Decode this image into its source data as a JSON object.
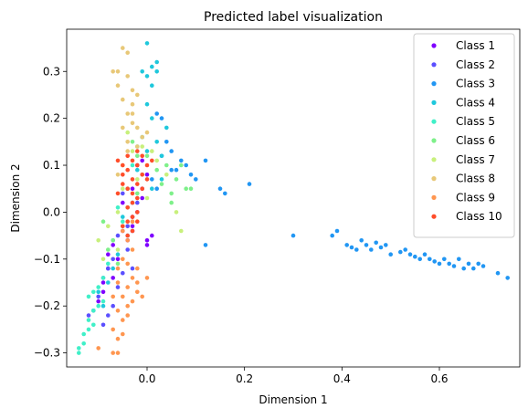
{
  "chart_data": {
    "type": "scatter",
    "title": "Predicted label visualization",
    "xlabel": "Dimension 1",
    "ylabel": "Dimension 2",
    "xlim": [
      -0.165,
      0.765
    ],
    "ylim": [
      -0.33,
      0.39
    ],
    "xticks": [
      0.0,
      0.2,
      0.4,
      0.6
    ],
    "xtick_labels": [
      "0.0",
      "0.2",
      "0.4",
      "0.6"
    ],
    "yticks": [
      -0.3,
      -0.2,
      -0.1,
      0.0,
      0.1,
      0.2,
      0.3
    ],
    "ytick_labels": [
      "−0.3",
      "−0.2",
      "−0.1",
      "0.0",
      "0.1",
      "0.2",
      "0.3"
    ],
    "grid": false,
    "legend_position": "top-right",
    "series": [
      {
        "name": "Class 1",
        "color": "#7f00ff",
        "points": [
          [
            -0.02,
            0.1
          ],
          [
            -0.01,
            0.11
          ],
          [
            0.0,
            0.08
          ],
          [
            -0.03,
            0.05
          ],
          [
            -0.01,
            0.03
          ],
          [
            -0.05,
            0.02
          ],
          [
            -0.03,
            -0.01
          ],
          [
            -0.05,
            -0.04
          ],
          [
            -0.04,
            -0.06
          ],
          [
            -0.07,
            -0.07
          ],
          [
            -0.08,
            -0.09
          ],
          [
            -0.06,
            -0.1
          ],
          [
            -0.08,
            -0.12
          ],
          [
            -0.07,
            -0.14
          ],
          [
            -0.09,
            -0.15
          ],
          [
            0.0,
            -0.06
          ],
          [
            0.01,
            -0.05
          ],
          [
            -0.01,
            0.05
          ],
          [
            0.0,
            -0.07
          ],
          [
            -0.02,
            0.0
          ],
          [
            -0.03,
            -0.03
          ],
          [
            -0.09,
            -0.17
          ],
          [
            -0.1,
            -0.19
          ]
        ]
      },
      {
        "name": "Class 2",
        "color": "#5b4fff",
        "points": [
          [
            -0.06,
            -0.05
          ],
          [
            -0.07,
            -0.1
          ],
          [
            -0.08,
            -0.12
          ],
          [
            -0.05,
            -0.13
          ],
          [
            -0.09,
            -0.14
          ],
          [
            -0.06,
            -0.16
          ],
          [
            -0.1,
            -0.18
          ],
          [
            -0.07,
            -0.2
          ],
          [
            -0.11,
            -0.21
          ],
          [
            -0.08,
            -0.22
          ],
          [
            -0.12,
            -0.22
          ],
          [
            -0.09,
            -0.24
          ],
          [
            -0.04,
            -0.08
          ],
          [
            -0.03,
            -0.04
          ],
          [
            -0.02,
            0.02
          ],
          [
            -0.05,
            0.04
          ],
          [
            -0.03,
            -0.12
          ],
          [
            -0.04,
            -0.03
          ]
        ]
      },
      {
        "name": "Class 3",
        "color": "#2196f3",
        "points": [
          [
            0.02,
            0.21
          ],
          [
            0.03,
            0.2
          ],
          [
            0.04,
            0.15
          ],
          [
            0.05,
            0.13
          ],
          [
            0.07,
            0.11
          ],
          [
            0.08,
            0.1
          ],
          [
            0.06,
            0.09
          ],
          [
            0.09,
            0.08
          ],
          [
            0.1,
            0.07
          ],
          [
            0.12,
            0.11
          ],
          [
            0.15,
            0.05
          ],
          [
            0.16,
            0.04
          ],
          [
            0.21,
            0.06
          ],
          [
            0.12,
            -0.07
          ],
          [
            0.3,
            -0.05
          ],
          [
            0.38,
            -0.05
          ],
          [
            0.39,
            -0.04
          ],
          [
            0.41,
            -0.07
          ],
          [
            0.42,
            -0.075
          ],
          [
            0.43,
            -0.08
          ],
          [
            0.44,
            -0.06
          ],
          [
            0.45,
            -0.07
          ],
          [
            0.46,
            -0.08
          ],
          [
            0.47,
            -0.065
          ],
          [
            0.48,
            -0.075
          ],
          [
            0.49,
            -0.07
          ],
          [
            0.5,
            -0.09
          ],
          [
            0.52,
            -0.085
          ],
          [
            0.53,
            -0.08
          ],
          [
            0.54,
            -0.09
          ],
          [
            0.55,
            -0.095
          ],
          [
            0.56,
            -0.1
          ],
          [
            0.57,
            -0.09
          ],
          [
            0.58,
            -0.1
          ],
          [
            0.59,
            -0.105
          ],
          [
            0.6,
            -0.11
          ],
          [
            0.61,
            -0.1
          ],
          [
            0.62,
            -0.11
          ],
          [
            0.63,
            -0.115
          ],
          [
            0.64,
            -0.1
          ],
          [
            0.65,
            -0.12
          ],
          [
            0.66,
            -0.11
          ],
          [
            0.67,
            -0.12
          ],
          [
            0.68,
            -0.11
          ],
          [
            0.69,
            -0.115
          ],
          [
            0.72,
            -0.13
          ],
          [
            0.74,
            -0.14
          ],
          [
            0.02,
            0.05
          ],
          [
            0.01,
            0.07
          ],
          [
            0.03,
            0.12
          ],
          [
            0.05,
            0.09
          ]
        ]
      },
      {
        "name": "Class 4",
        "color": "#1fc8dc",
        "points": [
          [
            0.0,
            0.36
          ],
          [
            0.01,
            0.31
          ],
          [
            0.02,
            0.32
          ],
          [
            -0.01,
            0.3
          ],
          [
            0.0,
            0.29
          ],
          [
            0.02,
            0.3
          ],
          [
            0.01,
            0.27
          ],
          [
            0.0,
            0.23
          ],
          [
            0.01,
            0.2
          ],
          [
            0.02,
            0.15
          ],
          [
            -0.01,
            0.16
          ],
          [
            0.0,
            0.13
          ],
          [
            0.03,
            0.12
          ],
          [
            -0.02,
            0.09
          ],
          [
            0.01,
            0.05
          ],
          [
            -0.03,
            0.02
          ],
          [
            -0.05,
            -0.01
          ],
          [
            -0.04,
            -0.05
          ],
          [
            -0.06,
            -0.09
          ],
          [
            -0.07,
            -0.12
          ],
          [
            -0.08,
            -0.15
          ],
          [
            -0.1,
            -0.17
          ],
          [
            -0.09,
            -0.2
          ],
          [
            0.04,
            0.18
          ],
          [
            0.03,
            0.07
          ]
        ]
      },
      {
        "name": "Class 5",
        "color": "#40f0c8",
        "points": [
          [
            -0.14,
            -0.29
          ],
          [
            -0.13,
            -0.28
          ],
          [
            -0.14,
            -0.3
          ],
          [
            -0.13,
            -0.26
          ],
          [
            -0.12,
            -0.25
          ],
          [
            -0.11,
            -0.24
          ],
          [
            -0.12,
            -0.23
          ],
          [
            -0.11,
            -0.21
          ],
          [
            -0.1,
            -0.2
          ],
          [
            -0.12,
            -0.18
          ],
          [
            -0.1,
            -0.16
          ],
          [
            -0.09,
            -0.14
          ],
          [
            -0.08,
            -0.11
          ],
          [
            -0.07,
            -0.06
          ],
          [
            -0.05,
            -0.02
          ],
          [
            -0.06,
            0.01
          ],
          [
            -0.04,
            0.05
          ],
          [
            -0.03,
            0.1
          ],
          [
            -0.02,
            0.14
          ],
          [
            -0.01,
            0.16
          ],
          [
            -0.11,
            -0.17
          ],
          [
            -0.09,
            -0.19
          ]
        ]
      },
      {
        "name": "Class 6",
        "color": "#7ef08a",
        "points": [
          [
            -0.03,
            0.15
          ],
          [
            -0.02,
            0.12
          ],
          [
            0.0,
            0.12
          ],
          [
            0.02,
            0.09
          ],
          [
            0.03,
            0.06
          ],
          [
            0.05,
            0.04
          ],
          [
            0.06,
            0.07
          ],
          [
            0.08,
            0.05
          ],
          [
            0.09,
            0.05
          ],
          [
            0.04,
            0.1
          ],
          [
            -0.01,
            0.08
          ],
          [
            -0.02,
            0.04
          ],
          [
            -0.04,
            0.01
          ],
          [
            -0.05,
            -0.03
          ],
          [
            -0.07,
            -0.06
          ],
          [
            -0.08,
            -0.08
          ],
          [
            -0.09,
            -0.02
          ],
          [
            -0.06,
            -0.11
          ],
          [
            0.07,
            0.1
          ],
          [
            0.05,
            0.02
          ]
        ]
      },
      {
        "name": "Class 7",
        "color": "#c8f07c",
        "points": [
          [
            -0.04,
            0.17
          ],
          [
            -0.03,
            0.13
          ],
          [
            -0.01,
            0.14
          ],
          [
            0.01,
            0.13
          ],
          [
            0.02,
            0.11
          ],
          [
            0.04,
            0.08
          ],
          [
            -0.02,
            0.07
          ],
          [
            -0.05,
            0.05
          ],
          [
            -0.06,
            0.0
          ],
          [
            -0.08,
            -0.03
          ],
          [
            -0.1,
            -0.06
          ],
          [
            -0.06,
            -0.08
          ],
          [
            -0.09,
            -0.1
          ],
          [
            0.07,
            -0.04
          ],
          [
            0.06,
            0.0
          ],
          [
            -0.03,
            -0.02
          ],
          [
            0.0,
            0.03
          ]
        ]
      },
      {
        "name": "Class 8",
        "color": "#e8c878",
        "points": [
          [
            -0.05,
            0.35
          ],
          [
            -0.04,
            0.34
          ],
          [
            -0.06,
            0.3
          ],
          [
            -0.07,
            0.3
          ],
          [
            -0.04,
            0.29
          ],
          [
            -0.06,
            0.27
          ],
          [
            -0.03,
            0.26
          ],
          [
            -0.05,
            0.24
          ],
          [
            -0.03,
            0.23
          ],
          [
            -0.04,
            0.21
          ],
          [
            -0.03,
            0.19
          ],
          [
            -0.02,
            0.18
          ],
          [
            -0.05,
            0.18
          ],
          [
            -0.01,
            0.16
          ],
          [
            -0.04,
            0.15
          ],
          [
            -0.02,
            0.14
          ],
          [
            0.0,
            0.17
          ],
          [
            -0.03,
            0.21
          ],
          [
            -0.04,
            0.13
          ],
          [
            -0.05,
            0.1
          ],
          [
            -0.06,
            0.08
          ],
          [
            -0.02,
            0.25
          ]
        ]
      },
      {
        "name": "Class 9",
        "color": "#ff9650",
        "points": [
          [
            -0.07,
            -0.25
          ],
          [
            -0.06,
            -0.27
          ],
          [
            -0.05,
            -0.26
          ],
          [
            -0.07,
            -0.3
          ],
          [
            -0.06,
            -0.3
          ],
          [
            -0.1,
            -0.29
          ],
          [
            -0.05,
            -0.23
          ],
          [
            -0.06,
            -0.21
          ],
          [
            -0.04,
            -0.2
          ],
          [
            -0.03,
            -0.19
          ],
          [
            -0.05,
            -0.18
          ],
          [
            -0.02,
            -0.17
          ],
          [
            -0.04,
            -0.16
          ],
          [
            -0.06,
            -0.15
          ],
          [
            -0.03,
            -0.14
          ],
          [
            -0.02,
            -0.12
          ],
          [
            -0.04,
            -0.11
          ],
          [
            -0.05,
            -0.1
          ],
          [
            -0.03,
            -0.08
          ],
          [
            -0.04,
            -0.06
          ],
          [
            -0.05,
            -0.04
          ],
          [
            -0.03,
            -0.02
          ],
          [
            -0.02,
            -0.15
          ],
          [
            -0.07,
            -0.18
          ],
          [
            -0.01,
            -0.18
          ],
          [
            -0.04,
            -0.22
          ],
          [
            0.0,
            -0.14
          ],
          [
            -0.06,
            -0.12
          ]
        ]
      },
      {
        "name": "Class 10",
        "color": "#ff4d2a",
        "points": [
          [
            -0.05,
            0.1
          ],
          [
            -0.04,
            0.12
          ],
          [
            -0.03,
            0.11
          ],
          [
            -0.02,
            0.1
          ],
          [
            -0.04,
            0.09
          ],
          [
            -0.05,
            0.08
          ],
          [
            -0.03,
            0.07
          ],
          [
            -0.02,
            0.06
          ],
          [
            -0.04,
            0.05
          ],
          [
            -0.03,
            0.04
          ],
          [
            -0.02,
            0.03
          ],
          [
            -0.03,
            0.02
          ],
          [
            -0.04,
            0.01
          ],
          [
            -0.02,
            0.0
          ],
          [
            -0.03,
            -0.01
          ],
          [
            -0.04,
            -0.02
          ],
          [
            -0.05,
            -0.03
          ],
          [
            -0.03,
            -0.04
          ],
          [
            -0.04,
            -0.05
          ],
          [
            -0.02,
            0.13
          ],
          [
            -0.01,
            0.12
          ],
          [
            -0.06,
            0.11
          ],
          [
            -0.01,
            0.08
          ],
          [
            0.0,
            0.1
          ],
          [
            0.01,
            0.11
          ],
          [
            -0.05,
            0.06
          ],
          [
            -0.06,
            0.04
          ],
          [
            -0.02,
            -0.02
          ],
          [
            -0.01,
            0.05
          ],
          [
            0.0,
            0.07
          ]
        ]
      }
    ]
  }
}
